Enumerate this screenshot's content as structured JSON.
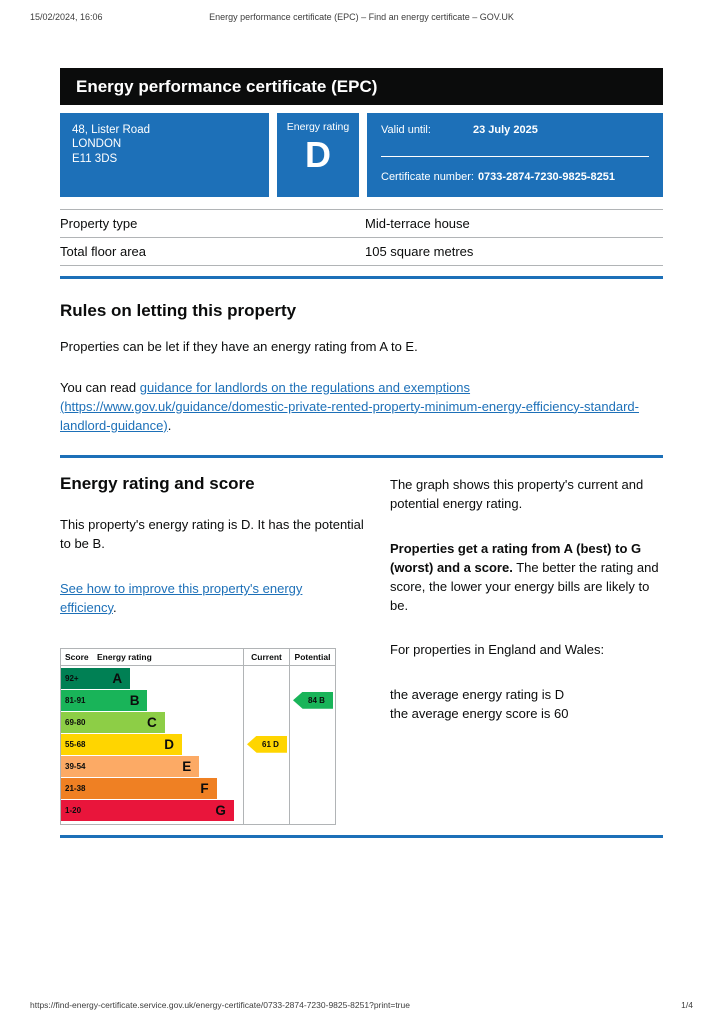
{
  "meta": {
    "print_datetime": "15/02/2024, 16:06",
    "print_title": "Energy performance certificate (EPC) – Find an energy certificate – GOV.UK",
    "footer_url": "https://find-energy-certificate.service.gov.uk/energy-certificate/0733-2874-7230-9825-8251?print=true",
    "page_indicator": "1/4"
  },
  "colors": {
    "govuk_blue": "#1d70b8",
    "header_black": "#0b0c0c",
    "border_grey": "#b1b4b6",
    "link_blue": "#1d70b8"
  },
  "header": {
    "title": "Energy performance certificate (EPC)"
  },
  "banner": {
    "address_lines": [
      "48, Lister Road",
      "LONDON",
      "E11 3DS"
    ],
    "rating_label": "Energy rating",
    "rating_value": "D",
    "valid_until_label": "Valid until:",
    "valid_until_value": "23 July 2025",
    "certificate_label": "Certificate number:",
    "certificate_value": "0733-2874-7230-9825-8251"
  },
  "property_details": {
    "rows": [
      {
        "label": "Property type",
        "value": "Mid-terrace house"
      },
      {
        "label": "Total floor area",
        "value": "105 square metres"
      }
    ]
  },
  "rules": {
    "heading": "Rules on letting this property",
    "para1": "Properties can be let if they have an energy rating from A to E.",
    "para2_prefix": "You can read ",
    "link_text": "guidance for landlords on the regulations and exemptions (https://www.gov.uk/guidance/domestic-private-rented-property-minimum-energy-efficiency-standard-landlord-guidance)",
    "para2_suffix": "."
  },
  "rating_section": {
    "heading": "Energy rating and score",
    "para1": "This property's energy rating is D. It has the potential to be B.",
    "improve_link": "See how to improve this property's energy efficiency",
    "improve_link_suffix": ".",
    "right_para1": "The graph shows this property's current and potential energy rating.",
    "right_para2_bold": "Properties get a rating from A (best) to G (worst) and a score.",
    "right_para2_rest": " The better the rating and score, the lower your energy bills are likely to be.",
    "right_para3": "For properties in England and Wales:",
    "avg_rating_line": "the average energy rating is D",
    "avg_score_line": "the average energy score is 60"
  },
  "chart_data": {
    "type": "bar",
    "title": "Energy rating and score chart",
    "columns": [
      "Score",
      "Energy rating",
      "Current",
      "Potential"
    ],
    "bands": [
      {
        "score_range": "92+",
        "letter": "A",
        "color": "#008054",
        "width_pct": 38
      },
      {
        "score_range": "81-91",
        "letter": "B",
        "color": "#19b459",
        "width_pct": 47.5
      },
      {
        "score_range": "69-80",
        "letter": "C",
        "color": "#8dce46",
        "width_pct": 57
      },
      {
        "score_range": "55-68",
        "letter": "D",
        "color": "#ffd500",
        "width_pct": 66.5
      },
      {
        "score_range": "39-54",
        "letter": "E",
        "color": "#fcaa65",
        "width_pct": 76
      },
      {
        "score_range": "21-38",
        "letter": "F",
        "color": "#ef8023",
        "width_pct": 85.5
      },
      {
        "score_range": "1-20",
        "letter": "G",
        "color": "#e9153b",
        "width_pct": 95
      }
    ],
    "current": {
      "score": 61,
      "letter": "D",
      "band_index": 3,
      "color": "#ffd500"
    },
    "potential": {
      "score": 84,
      "letter": "B",
      "band_index": 1,
      "color": "#19b459"
    }
  }
}
